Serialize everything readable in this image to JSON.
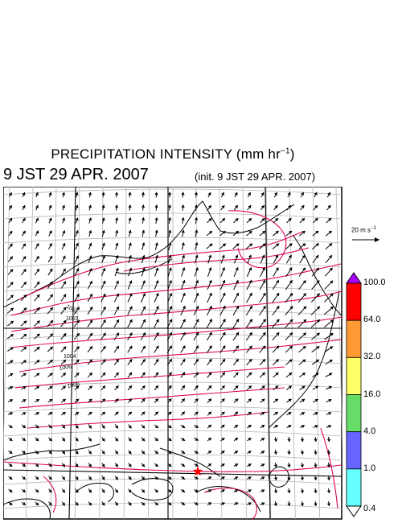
{
  "title": {
    "main": "PRECIPITATION INTENSITY (mm hr",
    "exp": "−1",
    "close": ")"
  },
  "valid_time": "9 JST 29 APR. 2007",
  "init_time": "(init. 9 JST 29 APR. 2007)",
  "wind_scale": {
    "label": "20 m s",
    "exp": "−1"
  },
  "isobar_labels": [
    "1001",
    "1003",
    "1004",
    "1006",
    "1006"
  ],
  "colorbar": {
    "ticks": [
      "100.0",
      "64.0",
      "32.0",
      "16.0",
      "4.0",
      "1.0",
      "0.4"
    ],
    "colors": [
      "#ff0000",
      "#ff9933",
      "#ffff66",
      "#66dd66",
      "#6666ff",
      "#66ffff"
    ],
    "over_color": "#aa00ff",
    "under_color": "#ffffff"
  },
  "map_colors": {
    "isobar": "#e0005a",
    "marker": "#ff0000",
    "grid": "#b4b4b4"
  }
}
